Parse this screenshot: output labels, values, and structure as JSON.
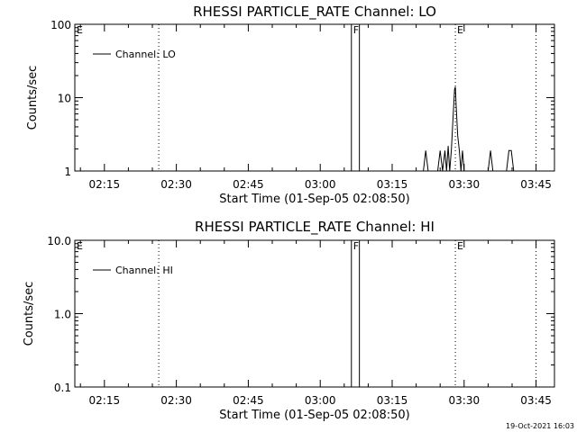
{
  "footer": {
    "timestamp": "19-Oct-2021 16:03"
  },
  "colors": {
    "background": "#ffffff",
    "foreground": "#000000"
  },
  "chart_data": [
    {
      "type": "line",
      "title": "RHESSI PARTICLE_RATE Channel: LO",
      "xlabel": "Start Time (01-Sep-05 02:08:50)",
      "ylabel": "Counts/sec",
      "yscale": "log",
      "ylim": [
        1,
        100
      ],
      "xlim": [
        "02:08:50",
        "03:48:50"
      ],
      "xticks": [
        "02:15",
        "02:30",
        "02:45",
        "03:00",
        "03:15",
        "03:30",
        "03:45"
      ],
      "yticks": [
        "1",
        "10",
        "100"
      ],
      "legend": {
        "label": "Channel: LO",
        "position": "top-left"
      },
      "markers": [
        {
          "label": "E",
          "time": "02:08:50",
          "style": "solid"
        },
        {
          "label": "",
          "time": "02:26:20",
          "style": "dotted"
        },
        {
          "label": "F",
          "time": "03:06:30",
          "style": "solid"
        },
        {
          "label": "",
          "time": "03:08:10",
          "style": "solid"
        },
        {
          "label": "E",
          "time": "03:28:10",
          "style": "dotted"
        },
        {
          "label": "",
          "time": "03:45:00",
          "style": "dotted"
        }
      ],
      "series": [
        {
          "name": "Channel: LO",
          "x": [
            "03:21:30",
            "03:22:00",
            "03:22:30",
            "03:24:30",
            "03:25:00",
            "03:25:30",
            "03:26:00",
            "03:26:20",
            "03:26:40",
            "03:27:00",
            "03:27:20",
            "03:27:40",
            "03:28:00",
            "03:28:10",
            "03:28:20",
            "03:28:40",
            "03:29:00",
            "03:29:20",
            "03:29:40",
            "03:30:00",
            "03:30:20",
            "03:35:00",
            "03:35:30",
            "03:36:00",
            "03:38:50",
            "03:39:20",
            "03:39:50",
            "03:40:20"
          ],
          "y": [
            1,
            1.9,
            1,
            1,
            1.9,
            1,
            1.9,
            1,
            2.2,
            1,
            1.9,
            5,
            13,
            14,
            8,
            3,
            1.9,
            1,
            1.9,
            1,
            1,
            1,
            1.9,
            1,
            1,
            1.9,
            1.9,
            1
          ]
        }
      ]
    },
    {
      "type": "line",
      "title": "RHESSI PARTICLE_RATE Channel: HI",
      "xlabel": "Start Time (01-Sep-05 02:08:50)",
      "ylabel": "Counts/sec",
      "yscale": "log",
      "ylim": [
        0.1,
        10
      ],
      "xlim": [
        "02:08:50",
        "03:48:50"
      ],
      "xticks": [
        "02:15",
        "02:30",
        "02:45",
        "03:00",
        "03:15",
        "03:30",
        "03:45"
      ],
      "yticks": [
        "0.1",
        "1.0",
        "10.0"
      ],
      "legend": {
        "label": "Channel: HI",
        "position": "top-left"
      },
      "markers": [
        {
          "label": "E",
          "time": "02:08:50",
          "style": "solid"
        },
        {
          "label": "",
          "time": "02:26:20",
          "style": "dotted"
        },
        {
          "label": "F",
          "time": "03:06:30",
          "style": "solid"
        },
        {
          "label": "",
          "time": "03:08:10",
          "style": "solid"
        },
        {
          "label": "E",
          "time": "03:28:10",
          "style": "dotted"
        },
        {
          "label": "",
          "time": "03:45:00",
          "style": "dotted"
        }
      ],
      "series": [
        {
          "name": "Channel: HI",
          "x": [],
          "y": []
        }
      ]
    }
  ]
}
